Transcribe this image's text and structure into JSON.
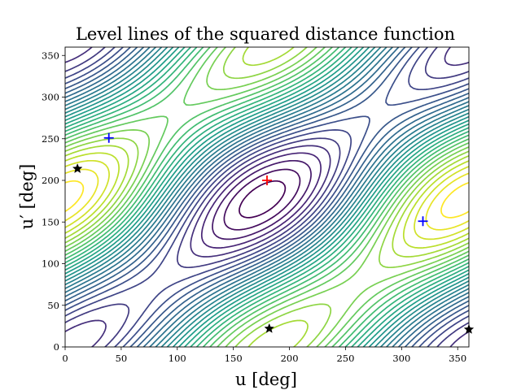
{
  "chart_data": {
    "type": "contour",
    "title": "Level lines of the squared distance function",
    "xlabel": "u [deg]",
    "ylabel": "u′ [deg]",
    "xlim": [
      0,
      360
    ],
    "ylim": [
      0,
      360
    ],
    "xticks": [
      "0",
      "50",
      "100",
      "150",
      "200",
      "250",
      "300",
      "350"
    ],
    "yticks": [
      "0",
      "50",
      "100",
      "150",
      "200",
      "250",
      "300",
      "350"
    ],
    "grid": false,
    "colormap": "viridis",
    "maximum": {
      "u": 180,
      "u_prime": 200,
      "marker": "+",
      "color": "#ff0000"
    },
    "saddles": {
      "marker": "+",
      "color": "#0000ff",
      "points": [
        {
          "u": 39,
          "u_prime": 251
        },
        {
          "u": 319,
          "u_prime": 151
        }
      ]
    },
    "minima": {
      "marker": "star",
      "color": "#000000",
      "points": [
        {
          "u": 11,
          "u_prime": 214
        },
        {
          "u": 182,
          "u_prime": 22
        },
        {
          "u": 360,
          "u_prime": 21
        }
      ]
    }
  }
}
